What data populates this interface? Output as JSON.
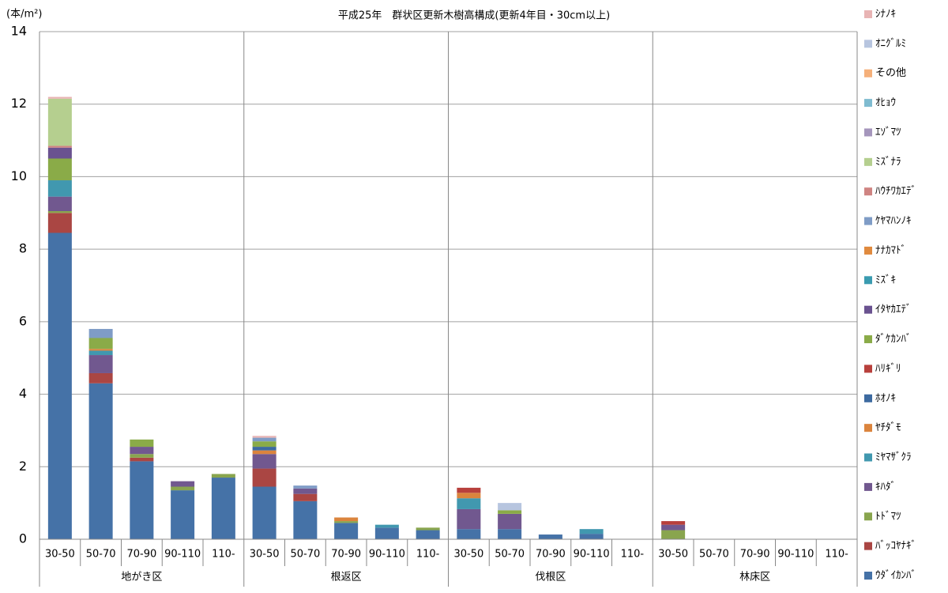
{
  "chart_data": {
    "type": "stacked_bar",
    "title": "平成25年　群状区更新木樹高構成(更新4年目・30cm以上)",
    "y_label": "(本/m²)",
    "groups": [
      "地がき区",
      "根返区",
      "伐根区",
      "林床区"
    ],
    "categories": [
      "30-50",
      "50-70",
      "70-90",
      "90-110",
      "110-",
      "30-50",
      "50-70",
      "70-90",
      "90-110",
      "110-",
      "30-50",
      "50-70",
      "70-90",
      "90-110",
      "110-",
      "30-50",
      "50-70",
      "70-90",
      "90-110",
      "110-"
    ],
    "ylim": [
      0,
      14
    ],
    "yticks": [
      0,
      2,
      4,
      6,
      8,
      10,
      12,
      14
    ],
    "grid": true,
    "legend": "right",
    "series": [
      {
        "name": "ｳﾀﾞｲｶﾝﾊﾞ",
        "color": "#4572a7",
        "values": [
          8.45,
          4.3,
          2.15,
          1.35,
          1.7,
          1.45,
          1.05,
          0.45,
          0.32,
          0.25,
          0.28,
          0.28,
          0.13,
          0.15,
          0,
          0,
          0,
          0,
          0,
          0
        ]
      },
      {
        "name": "ﾊﾞｯｺﾔﾅｷﾞ",
        "color": "#aa4643",
        "values": [
          0.55,
          0.28,
          0.1,
          0,
          0,
          0.5,
          0.2,
          0,
          0,
          0,
          0,
          0,
          0,
          0,
          0,
          0,
          0,
          0,
          0,
          0
        ]
      },
      {
        "name": "ﾄﾄﾞﾏﾂ",
        "color": "#89a54e",
        "values": [
          0.05,
          0,
          0.1,
          0.1,
          0.1,
          0,
          0,
          0.05,
          0,
          0.07,
          0,
          0,
          0,
          0,
          0,
          0.25,
          0,
          0,
          0,
          0
        ]
      },
      {
        "name": "ｷﾊﾀﾞ",
        "color": "#71588f",
        "values": [
          0.4,
          0.5,
          0.2,
          0.15,
          0,
          0.4,
          0.15,
          0,
          0,
          0,
          0.55,
          0.42,
          0,
          0,
          0,
          0.15,
          0,
          0,
          0,
          0
        ]
      },
      {
        "name": "ﾐﾔﾏｻﾞｸﾗ",
        "color": "#4198af",
        "values": [
          0.45,
          0.12,
          0,
          0,
          0,
          0,
          0,
          0,
          0.08,
          0,
          0.3,
          0,
          0,
          0.13,
          0,
          0,
          0,
          0,
          0,
          0
        ]
      },
      {
        "name": "ﾔﾁﾀﾞﾓ",
        "color": "#db843d",
        "values": [
          0,
          0.05,
          0,
          0,
          0,
          0.1,
          0,
          0.1,
          0,
          0,
          0.15,
          0,
          0,
          0,
          0,
          0,
          0,
          0,
          0,
          0
        ]
      },
      {
        "name": "ﾎｵﾉｷ",
        "color": "#3d6aa0",
        "values": [
          0,
          0,
          0,
          0,
          0,
          0.1,
          0,
          0,
          0,
          0,
          0,
          0,
          0,
          0,
          0,
          0,
          0,
          0,
          0,
          0
        ]
      },
      {
        "name": "ﾊﾘｷﾞﾘ",
        "color": "#b8403c",
        "values": [
          0,
          0,
          0,
          0,
          0,
          0,
          0,
          0,
          0,
          0,
          0.14,
          0,
          0,
          0,
          0,
          0.1,
          0,
          0,
          0,
          0
        ]
      },
      {
        "name": "ﾀﾞｹｶﾝﾊﾞ",
        "color": "#8aab48",
        "values": [
          0.6,
          0.3,
          0.2,
          0,
          0,
          0.15,
          0,
          0,
          0,
          0,
          0,
          0.1,
          0,
          0,
          0,
          0,
          0,
          0,
          0,
          0
        ]
      },
      {
        "name": "ｲﾀﾔｶｴﾃﾞ",
        "color": "#6a5290",
        "values": [
          0.3,
          0,
          0,
          0,
          0,
          0,
          0,
          0,
          0,
          0,
          0,
          0,
          0,
          0,
          0,
          0,
          0,
          0,
          0,
          0
        ]
      },
      {
        "name": "ﾐｽﾞｷ",
        "color": "#3a9bb0",
        "values": [
          0,
          0,
          0,
          0,
          0,
          0,
          0,
          0,
          0,
          0,
          0,
          0,
          0,
          0,
          0,
          0,
          0,
          0,
          0,
          0
        ]
      },
      {
        "name": "ﾅﾅｶﾏﾄﾞ",
        "color": "#e08a3e",
        "values": [
          0,
          0,
          0,
          0,
          0,
          0,
          0,
          0,
          0,
          0,
          0,
          0,
          0,
          0,
          0,
          0,
          0,
          0,
          0,
          0
        ]
      },
      {
        "name": "ｹﾔﾏﾊﾝﾉｷ",
        "color": "#7f9cc6",
        "values": [
          0,
          0.25,
          0,
          0,
          0,
          0.1,
          0.08,
          0,
          0,
          0,
          0,
          0,
          0,
          0,
          0,
          0,
          0,
          0,
          0,
          0
        ]
      },
      {
        "name": "ﾊｳﾁﾜｶｴﾃﾞ",
        "color": "#cf8482",
        "values": [
          0.05,
          0,
          0,
          0,
          0,
          0,
          0,
          0,
          0,
          0,
          0,
          0,
          0,
          0,
          0,
          0,
          0,
          0,
          0,
          0
        ]
      },
      {
        "name": "ﾐｽﾞﾅﾗ",
        "color": "#b5cf8f",
        "values": [
          1.3,
          0,
          0,
          0,
          0,
          0,
          0,
          0,
          0,
          0,
          0,
          0,
          0,
          0,
          0,
          0,
          0,
          0,
          0,
          0
        ]
      },
      {
        "name": "ｴｿﾞﾏﾂ",
        "color": "#a596bc",
        "values": [
          0,
          0,
          0,
          0,
          0,
          0,
          0,
          0,
          0,
          0,
          0,
          0,
          0,
          0,
          0,
          0,
          0,
          0,
          0,
          0
        ]
      },
      {
        "name": "ｵﾋｮｳ",
        "color": "#7fbbd0",
        "values": [
          0,
          0,
          0,
          0,
          0,
          0,
          0,
          0,
          0,
          0,
          0,
          0,
          0,
          0,
          0,
          0,
          0,
          0,
          0,
          0
        ]
      },
      {
        "name": "その他",
        "color": "#f5b07a",
        "values": [
          0,
          0,
          0,
          0,
          0,
          0,
          0,
          0,
          0,
          0,
          0,
          0,
          0,
          0,
          0,
          0,
          0,
          0,
          0,
          0
        ]
      },
      {
        "name": "ｵﾆｸﾞﾙﾐ",
        "color": "#b7c5df",
        "values": [
          0,
          0,
          0,
          0,
          0,
          0,
          0,
          0,
          0,
          0,
          0,
          0.2,
          0,
          0,
          0,
          0,
          0,
          0,
          0,
          0
        ]
      },
      {
        "name": "ｼﾅﾉｷ",
        "color": "#e8b4b4",
        "values": [
          0.05,
          0,
          0,
          0,
          0,
          0.05,
          0,
          0,
          0,
          0,
          0,
          0,
          0,
          0,
          0,
          0,
          0,
          0,
          0,
          0
        ]
      }
    ]
  }
}
